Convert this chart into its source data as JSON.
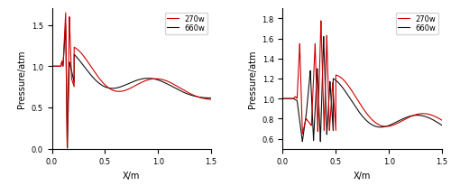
{
  "left_ylim": [
    0,
    1.7
  ],
  "right_ylim": [
    0.5,
    1.9
  ],
  "xlim": [
    0,
    1.5
  ],
  "xlabel": "X/m",
  "left_ylabel": "Pressure/atm",
  "right_ylabel": "Pressure/atm",
  "legend_labels": [
    "270w",
    "660w"
  ],
  "line_colors": [
    "#cc0000",
    "#111111"
  ],
  "left_yticks": [
    0,
    0.5,
    1.0,
    1.5
  ],
  "right_yticks": [
    0.6,
    0.8,
    1.0,
    1.2,
    1.4,
    1.6,
    1.8
  ],
  "xticks": [
    0,
    0.5,
    1.0,
    1.5
  ]
}
